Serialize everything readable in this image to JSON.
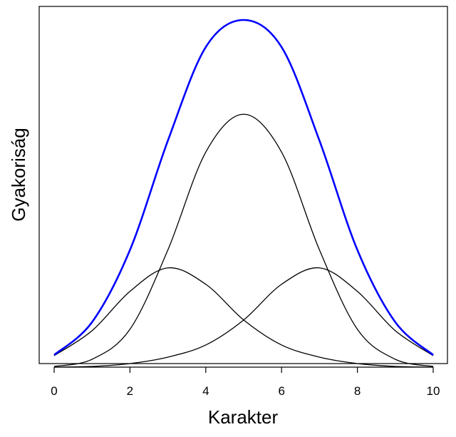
{
  "chart_data": {
    "type": "line",
    "title": "",
    "xlabel": "Karakter",
    "ylabel": "Gyakoriság",
    "xlim": [
      0,
      10
    ],
    "x_ticks": [
      0,
      2,
      4,
      6,
      8,
      10
    ],
    "y_ticks_shown": false,
    "grid": false,
    "legend": "none",
    "series": [
      {
        "color": "#000000",
        "x": [
          0,
          1,
          2,
          3,
          4,
          5,
          6,
          7,
          8,
          9,
          10
        ],
        "y": [
          0.16,
          0.51,
          1.06,
          1.39,
          1.16,
          0.66,
          0.31,
          0.14,
          0.05,
          0.01,
          0.0
        ]
      },
      {
        "color": "#000000",
        "x": [
          0,
          1,
          2,
          3,
          4,
          5,
          6,
          7,
          8,
          9,
          10
        ],
        "y": [
          0.01,
          0.11,
          0.53,
          1.64,
          3.01,
          3.54,
          3.01,
          1.64,
          0.53,
          0.11,
          0.01
        ]
      },
      {
        "color": "#000000",
        "x": [
          0,
          1,
          2,
          3,
          4,
          5,
          6,
          7,
          8,
          9,
          10
        ],
        "y": [
          0.0,
          0.01,
          0.05,
          0.14,
          0.31,
          0.66,
          1.16,
          1.39,
          1.06,
          0.51,
          0.16
        ]
      },
      {
        "color": "#0000ff",
        "x": [
          0,
          1,
          2,
          3,
          4,
          5,
          6,
          7,
          8,
          9,
          10
        ],
        "y": [
          0.17,
          0.63,
          1.64,
          3.17,
          4.48,
          4.86,
          4.48,
          3.17,
          1.64,
          0.63,
          0.17
        ]
      }
    ]
  }
}
